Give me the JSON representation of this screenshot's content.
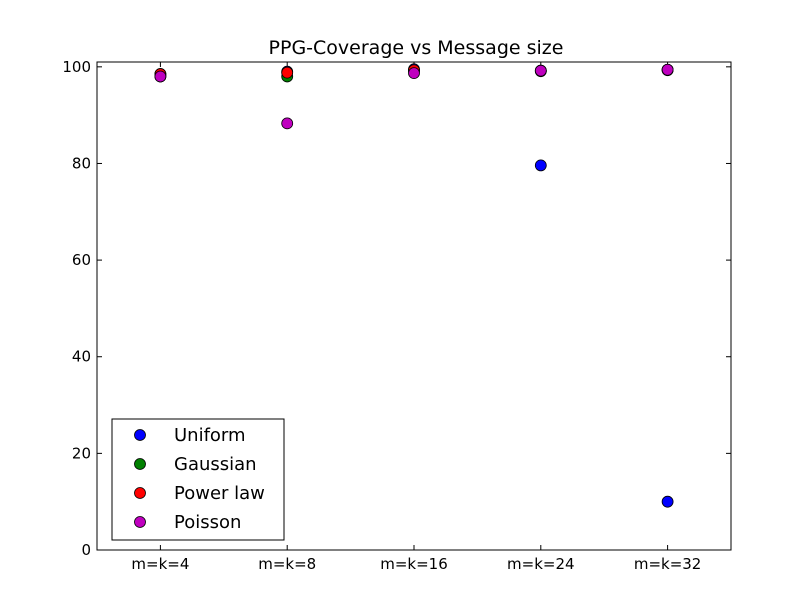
{
  "chart_data": {
    "type": "scatter",
    "title": "PPG-Coverage vs Message size",
    "xlabel": "",
    "ylabel": "",
    "categories": [
      "m=k=4",
      "m=k=8",
      "m=k=16",
      "m=k=24",
      "m=k=32"
    ],
    "yticks": [
      0,
      20,
      40,
      60,
      80,
      100
    ],
    "ylim": [
      0,
      101
    ],
    "grid": false,
    "legend_position": "lower-left",
    "series": [
      {
        "name": "Uniform",
        "color": "#0000ff",
        "values": [
          98.0,
          99.0,
          99.5,
          79.6,
          10.0
        ]
      },
      {
        "name": "Gaussian",
        "color": "#008000",
        "values": [
          98.5,
          98.0,
          99.2,
          99.2,
          99.3
        ]
      },
      {
        "name": "Power law",
        "color": "#ff0000",
        "values": [
          98.5,
          98.8,
          99.3,
          99.1,
          99.4
        ]
      },
      {
        "name": "Poisson",
        "color": "#bf00bf",
        "values": [
          98.0,
          88.3,
          98.7,
          99.2,
          99.4
        ]
      }
    ]
  }
}
